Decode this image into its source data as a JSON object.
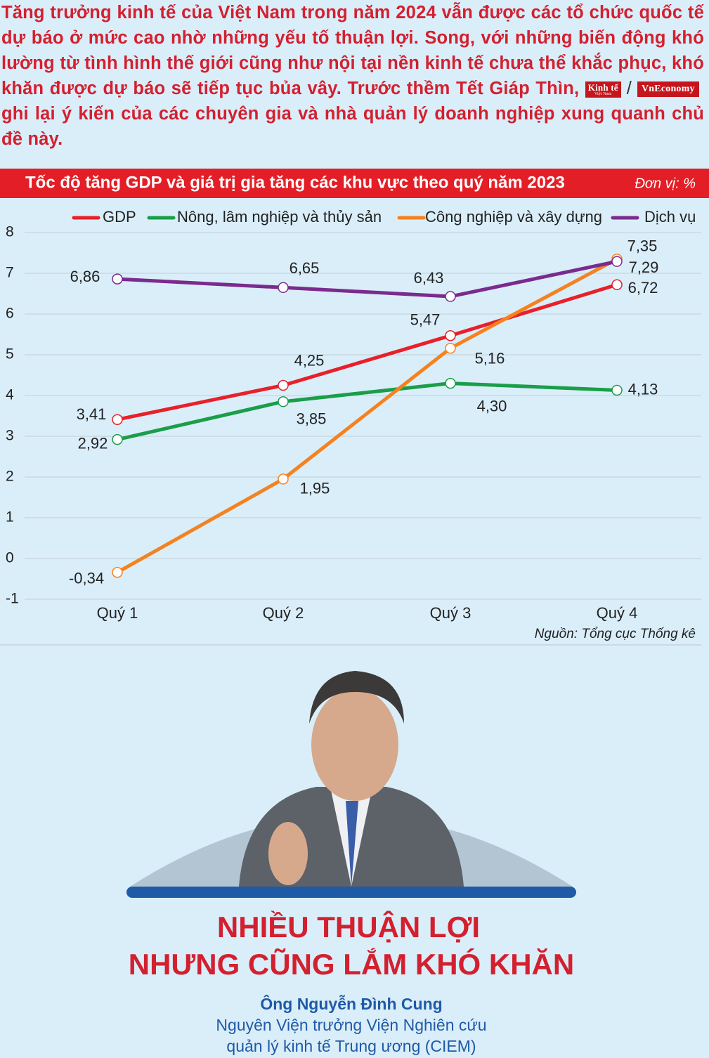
{
  "intro": {
    "before": "Tăng trưởng kinh tế của Việt Nam trong năm 2024 vẫn được các tổ chức quốc tế dự báo ở mức cao nhờ những yếu tố thuận lợi. Song, với những biến động khó lường từ tình hình thế giới cũng như nội tại nền kinh tế chưa thể khắc phục, khó khăn được dự báo sẽ tiếp tục bủa vây. Trước thềm Tết Giáp Thìn,",
    "logo1": "Kinh tế",
    "logo1_sub": "Việt Nam",
    "separator": "/",
    "logo2": "VnEconomy",
    "after": "ghi lại ý kiến của các chuyên gia và nhà quản lý doanh nghiệp xung quanh chủ đề này."
  },
  "chart_data": {
    "type": "line",
    "title": "Tốc độ tăng GDP và giá trị gia tăng các khu vực theo quý năm 2023",
    "unit": "Đơn vị: %",
    "source": "Nguồn: Tổng cục Thống kê",
    "categories": [
      "Quý 1",
      "Quý 2",
      "Quý 3",
      "Quý 4"
    ],
    "series": [
      {
        "name": "GDP",
        "color": "#e8202a",
        "values": [
          3.41,
          4.25,
          5.47,
          6.72
        ],
        "value_labels": [
          "3,41",
          "4,25",
          "5,47",
          "6,72"
        ]
      },
      {
        "name": "Nông, lâm nghiệp và thủy sản",
        "color": "#1a9e48",
        "values": [
          2.92,
          3.85,
          4.3,
          4.13
        ],
        "value_labels": [
          "2,92",
          "3,85",
          "4,30",
          "4,13"
        ]
      },
      {
        "name": "Công nghiệp và xây dựng",
        "color": "#f5821f",
        "values": [
          -0.34,
          1.95,
          5.16,
          7.35
        ],
        "value_labels": [
          "-0,34",
          "1,95",
          "5,16",
          "7,35"
        ]
      },
      {
        "name": "Dịch vụ",
        "color": "#7b2a8e",
        "values": [
          6.86,
          6.65,
          6.43,
          7.29
        ],
        "value_labels": [
          "6,86",
          "6,65",
          "6,43",
          "7,29"
        ]
      }
    ],
    "ylim": [
      -1,
      8
    ],
    "yticks": [
      8,
      7,
      6,
      5,
      4,
      3,
      2,
      1,
      0,
      -1
    ],
    "grid": true
  },
  "article": {
    "headline_line1": "NHIỀU THUẬN LỢI",
    "headline_line2": "NHƯNG CŨNG LẮM KHÓ KHĂN",
    "person": "Ông Nguyễn Đình Cung",
    "role_line1": "Nguyên Viện trưởng Viện Nghiên cứu",
    "role_line2": "quản lý kinh tế Trung ương (CIEM)"
  }
}
